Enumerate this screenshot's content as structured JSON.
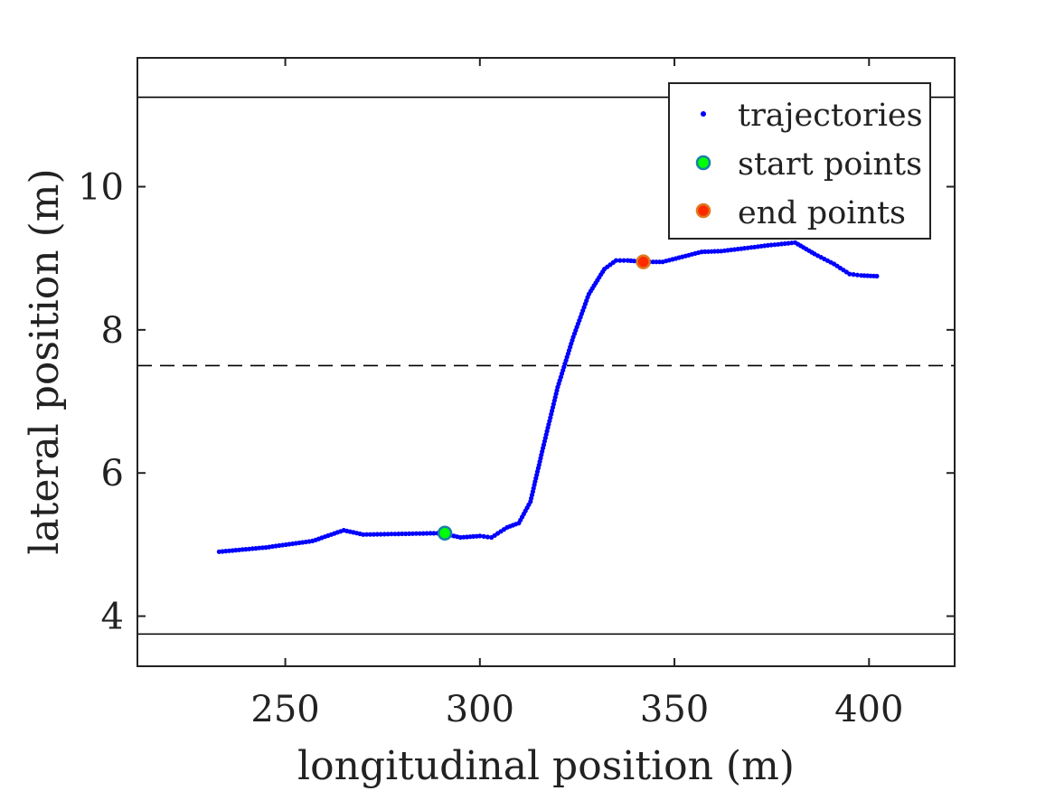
{
  "chart_data": {
    "type": "scatter",
    "title": "",
    "xlabel": "longitudinal position (m)",
    "ylabel": "lateral position (m)",
    "xlim": [
      212,
      422
    ],
    "ylim": [
      3.3,
      11.8
    ],
    "xticks": [
      250,
      300,
      350,
      400
    ],
    "yticks": [
      4,
      6,
      8,
      10
    ],
    "grid": false,
    "legend_position": "top-right",
    "reference_lines": [
      {
        "y": 11.25,
        "style": "solid",
        "color": "#000000"
      },
      {
        "y": 7.5,
        "style": "dashed",
        "color": "#000000"
      },
      {
        "y": 3.75,
        "style": "solid",
        "color": "#000000"
      }
    ],
    "series": [
      {
        "name": "trajectories",
        "marker": "dot",
        "color": "#0000ff",
        "x": [
          233,
          245,
          257,
          265,
          270,
          280,
          290,
          295,
          300,
          303,
          307,
          310,
          313,
          316,
          320,
          324,
          328,
          332,
          335,
          338,
          342,
          347,
          352,
          357,
          362,
          368,
          374,
          381,
          386,
          391,
          395,
          398,
          402
        ],
        "y": [
          4.9,
          4.96,
          5.05,
          5.2,
          5.14,
          5.15,
          5.16,
          5.1,
          5.12,
          5.1,
          5.24,
          5.3,
          5.6,
          6.3,
          7.2,
          7.9,
          8.5,
          8.85,
          8.97,
          8.97,
          8.95,
          8.95,
          9.02,
          9.09,
          9.1,
          9.14,
          9.18,
          9.22,
          9.06,
          8.92,
          8.78,
          8.76,
          8.75
        ]
      },
      {
        "name": "start points",
        "marker": "circle",
        "color": "#00ff00",
        "edgecolor": "#1a7fa8",
        "x": [
          291
        ],
        "y": [
          5.16
        ]
      },
      {
        "name": "end points",
        "marker": "circle",
        "color": "#ff2a00",
        "edgecolor": "#e07a20",
        "x": [
          342
        ],
        "y": [
          8.95
        ]
      }
    ]
  }
}
